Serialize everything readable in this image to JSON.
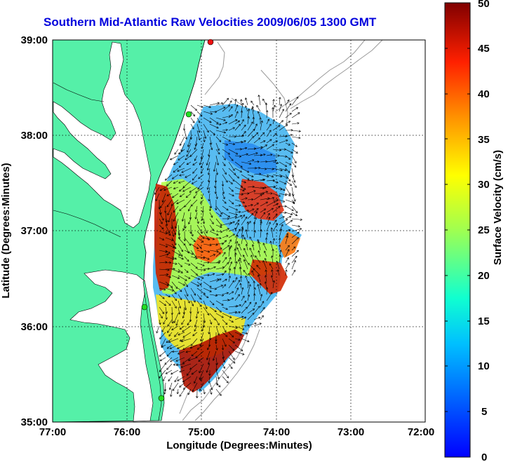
{
  "title": "Southern Mid-Atlantic Raw Velocities 2009/06/05 1300 GMT",
  "xlabel": "Longitude (Degrees:Minutes)",
  "ylabel": "Latitude (Degrees:Minutes)",
  "colorbar_label": "Surface Velocity (cm/s)",
  "x_ticks": [
    "77:00",
    "76:00",
    "75:00",
    "74:00",
    "73:00",
    "72:00"
  ],
  "y_ticks": [
    "39:00",
    "38:00",
    "37:00",
    "36:00",
    "35:00"
  ],
  "colorbar_ticks": [
    "50",
    "45",
    "40",
    "35",
    "30",
    "25",
    "20",
    "15",
    "10",
    "5",
    "0"
  ],
  "colors": {
    "land": "#55f0a8",
    "coast_line": "#000000",
    "bathymetry": "#999999",
    "title": "#0000dd",
    "station_marker": "#22dd22",
    "station_marker_offmap": "#ee1111"
  },
  "map_data": {
    "lon_range": [
      -77,
      -72
    ],
    "lat_range": [
      35,
      39
    ],
    "grid": true,
    "colormap": "jet",
    "value_range_cm_s": [
      0,
      50
    ],
    "stations": [
      {
        "lon": -74.87,
        "lat": 38.95
      },
      {
        "lon": -75.08,
        "lat": 38.26
      },
      {
        "lon": -75.7,
        "lat": 36.2
      },
      {
        "lon": -75.48,
        "lat": 35.25
      }
    ]
  }
}
